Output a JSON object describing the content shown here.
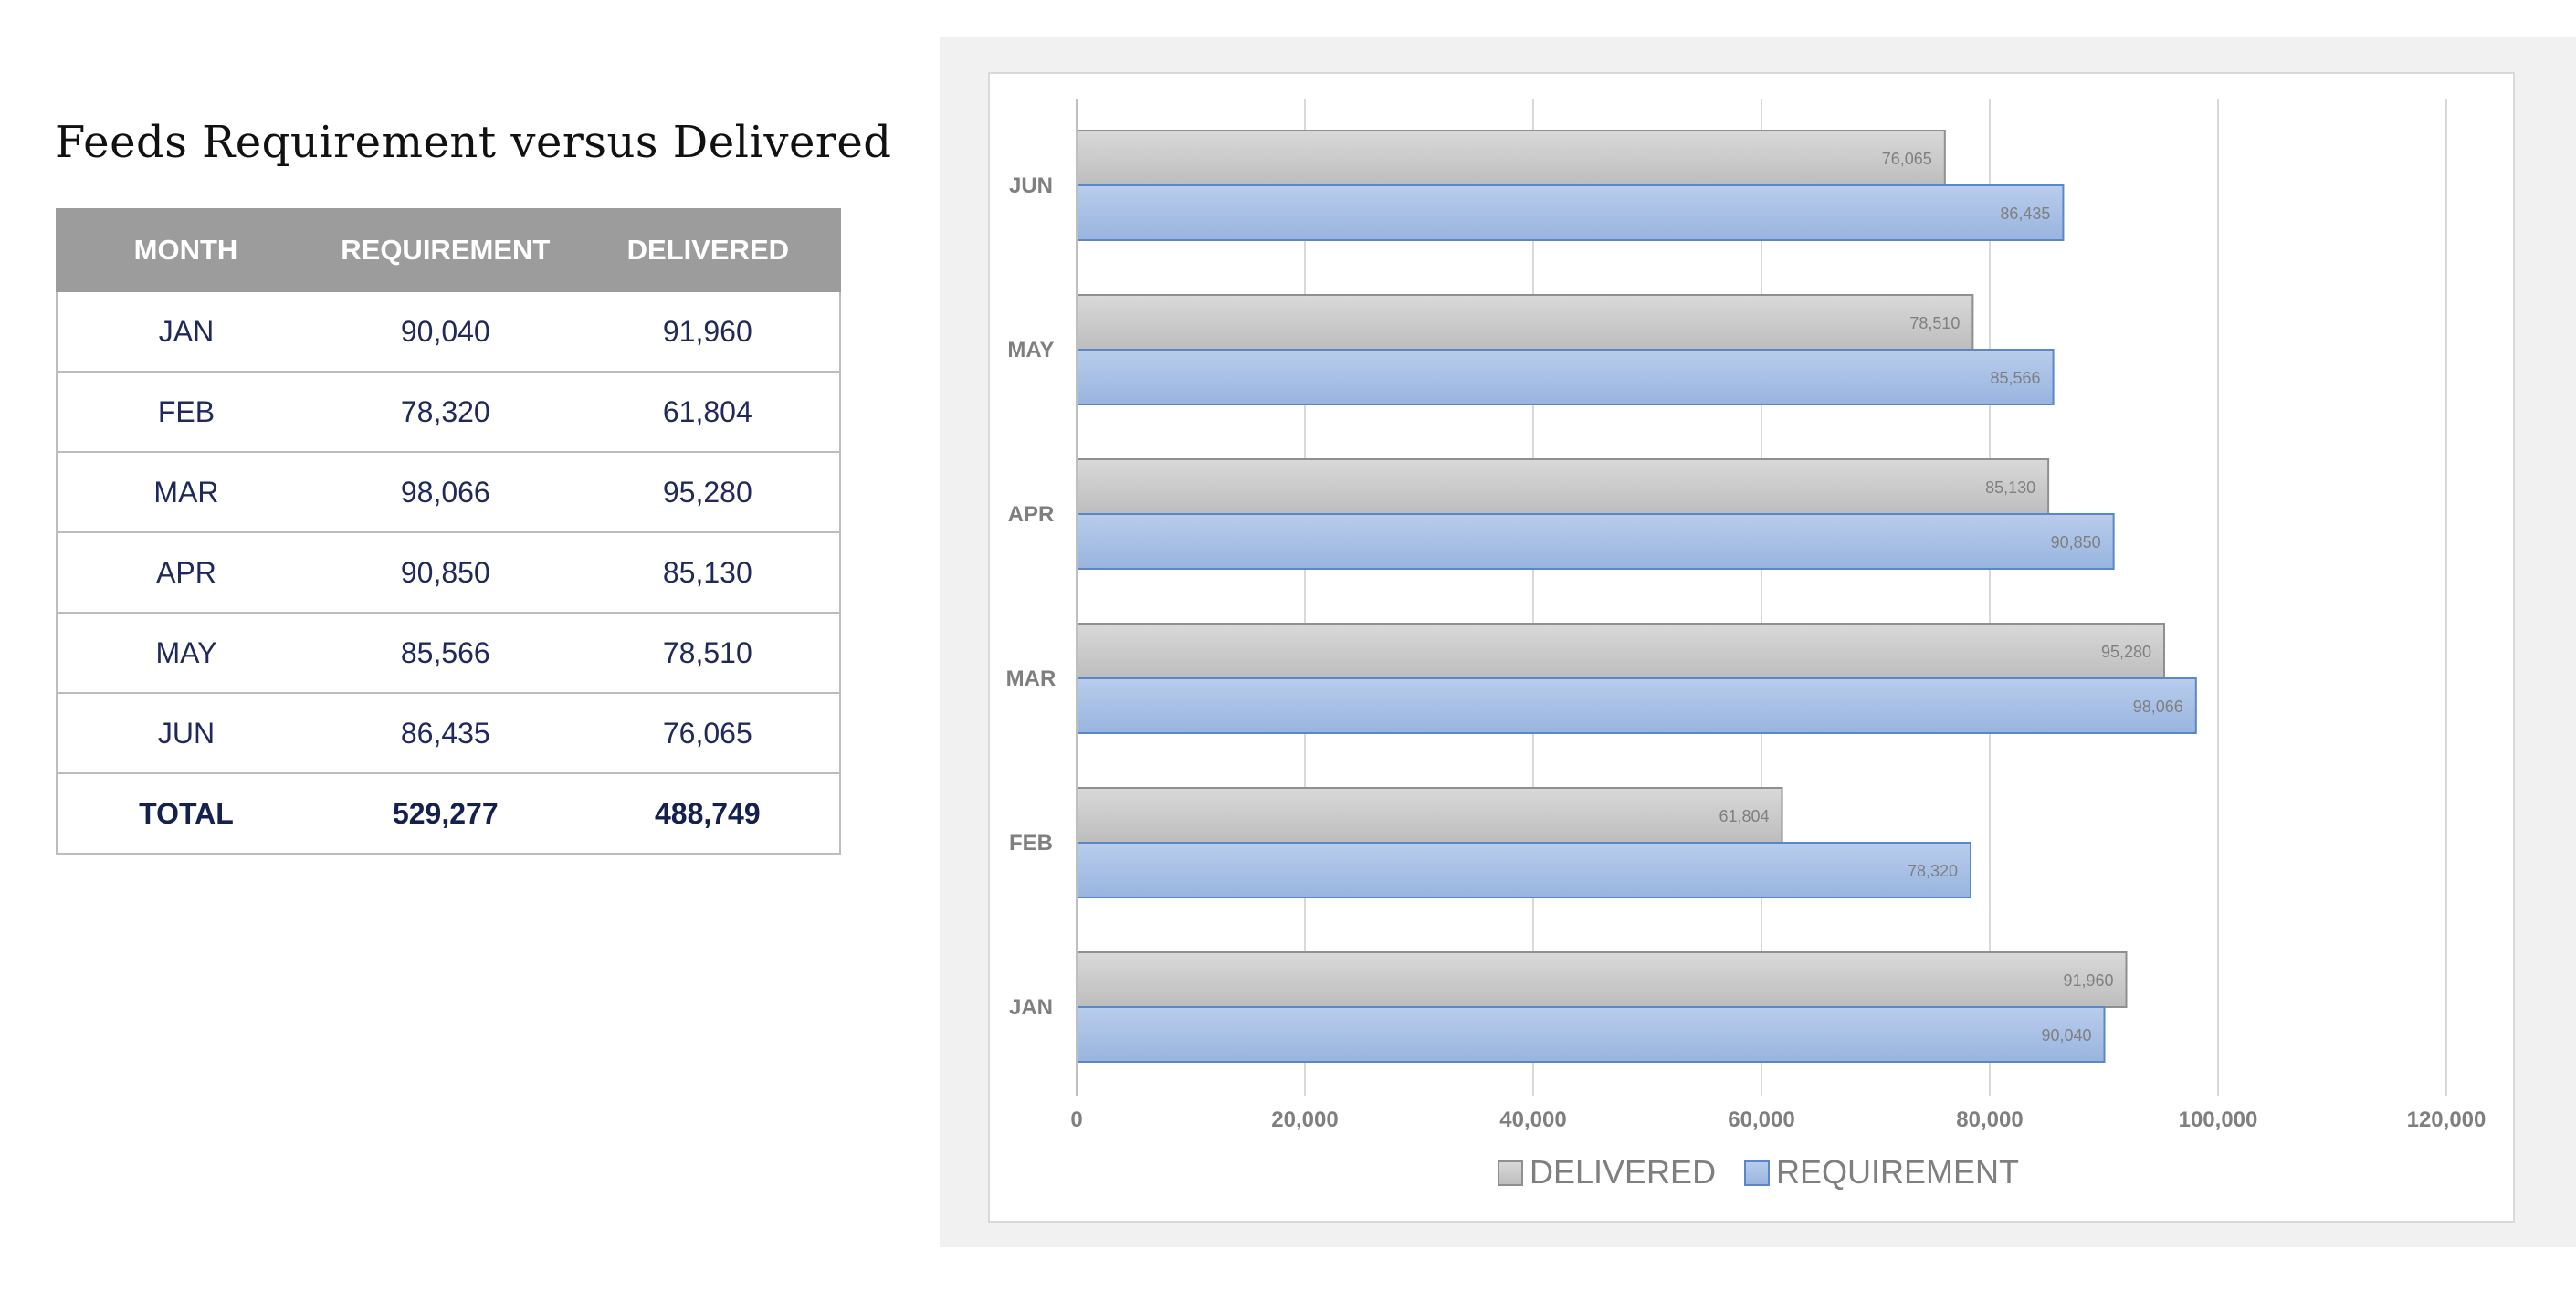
{
  "title": "Feeds Requirement versus Delivered",
  "table": {
    "headers": [
      "MONTH",
      "REQUIREMENT",
      "DELIVERED"
    ],
    "rows": [
      {
        "month": "JAN",
        "requirement": "90,040",
        "delivered": "91,960"
      },
      {
        "month": "FEB",
        "requirement": "78,320",
        "delivered": "61,804"
      },
      {
        "month": "MAR",
        "requirement": "98,066",
        "delivered": "95,280"
      },
      {
        "month": "APR",
        "requirement": "90,850",
        "delivered": "85,130"
      },
      {
        "month": "MAY",
        "requirement": "85,566",
        "delivered": "78,510"
      },
      {
        "month": "JUN",
        "requirement": "86,435",
        "delivered": "76,065"
      }
    ],
    "total": {
      "label": "TOTAL",
      "requirement": "529,277",
      "delivered": "488,749"
    }
  },
  "chart_data": {
    "type": "bar",
    "orientation": "horizontal",
    "title": "",
    "categories": [
      "JAN",
      "FEB",
      "MAR",
      "APR",
      "MAY",
      "JUN"
    ],
    "series": [
      {
        "name": "DELIVERED",
        "values": [
          91960,
          61804,
          95280,
          85130,
          78510,
          76065
        ],
        "color": "#c6c6c6"
      },
      {
        "name": "REQUIREMENT",
        "values": [
          90040,
          78320,
          98066,
          90850,
          85566,
          86435
        ],
        "color": "#a7bfe3"
      }
    ],
    "xlim": [
      0,
      120000
    ],
    "x_ticks": [
      0,
      20000,
      40000,
      60000,
      80000,
      100000,
      120000
    ],
    "x_tick_labels": [
      "0",
      "20,000",
      "40,000",
      "60,000",
      "80,000",
      "100,000",
      "120,000"
    ],
    "xlabel": "",
    "ylabel": "",
    "legend_position": "bottom",
    "grid": true
  },
  "colors": {
    "header_bg": "#9c9c9c",
    "table_text": "#1f2a5a",
    "delivered_bar": "#c6c6c6",
    "requirement_bar": "#a7bfe3",
    "requirement_border": "#5b87c6",
    "delivered_border": "#8f8f8f"
  }
}
